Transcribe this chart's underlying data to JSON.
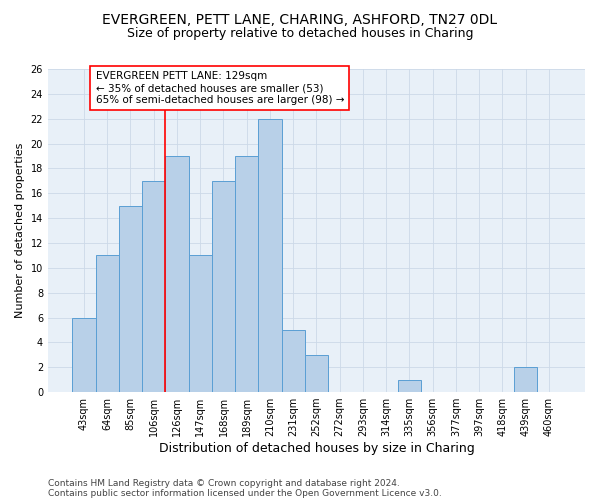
{
  "title1": "EVERGREEN, PETT LANE, CHARING, ASHFORD, TN27 0DL",
  "title2": "Size of property relative to detached houses in Charing",
  "xlabel": "Distribution of detached houses by size in Charing",
  "ylabel": "Number of detached properties",
  "bin_labels": [
    "43sqm",
    "64sqm",
    "85sqm",
    "106sqm",
    "126sqm",
    "147sqm",
    "168sqm",
    "189sqm",
    "210sqm",
    "231sqm",
    "252sqm",
    "272sqm",
    "293sqm",
    "314sqm",
    "335sqm",
    "356sqm",
    "377sqm",
    "397sqm",
    "418sqm",
    "439sqm",
    "460sqm"
  ],
  "bar_heights": [
    6,
    11,
    15,
    17,
    19,
    11,
    17,
    19,
    22,
    5,
    3,
    0,
    0,
    0,
    1,
    0,
    0,
    0,
    0,
    2,
    0
  ],
  "bar_color": "#b8d0e8",
  "bar_edge_color": "#5a9fd4",
  "vline_color": "red",
  "vline_x_index": 4,
  "annotation_text": "EVERGREEN PETT LANE: 129sqm\n← 35% of detached houses are smaller (53)\n65% of semi-detached houses are larger (98) →",
  "annotation_box_color": "white",
  "annotation_box_edge_color": "red",
  "ylim": [
    0,
    26
  ],
  "yticks": [
    0,
    2,
    4,
    6,
    8,
    10,
    12,
    14,
    16,
    18,
    20,
    22,
    24,
    26
  ],
  "footer1": "Contains HM Land Registry data © Crown copyright and database right 2024.",
  "footer2": "Contains public sector information licensed under the Open Government Licence v3.0.",
  "grid_color": "#ccd9e8",
  "background_color": "#e8f0f8",
  "title1_fontsize": 10,
  "title2_fontsize": 9,
  "xlabel_fontsize": 9,
  "ylabel_fontsize": 8,
  "tick_fontsize": 7,
  "annotation_fontsize": 7.5,
  "footer_fontsize": 6.5
}
